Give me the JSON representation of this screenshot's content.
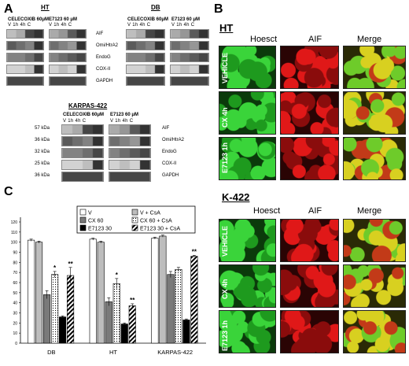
{
  "panels": {
    "a": "A",
    "b": "B",
    "c": "C"
  },
  "panel_a": {
    "ht_title": "HT",
    "db_title": "DB",
    "karpas_title": "KARPAS-422",
    "cx_header": "CELECOXIB  60μM",
    "e7123_header": "E7123 60 μM",
    "lanes": "V  1h  4h  C",
    "markers": [
      "AIF",
      "Omi/HtrA2",
      "EndoG",
      "COX-II",
      "GAPDH"
    ],
    "kda": [
      "57 kDa",
      "36 kDa",
      "32 kDa",
      "25 kDa",
      "36 kDa"
    ]
  },
  "panel_b": {
    "ht_title": "HT",
    "k422_title": "K-422",
    "col_heads": [
      "Hoesct",
      "AIF",
      "Merge"
    ],
    "row_labels": [
      "VEHICLE",
      "CX 4h",
      "E7123 1h"
    ]
  },
  "panel_c": {
    "legend": [
      "V",
      "V + CsA",
      "CX 60",
      "CX 60 + CsA",
      "E7123 30",
      "E7123 30 + CsA"
    ],
    "groups": [
      "DB",
      "HT",
      "KARPAS-422"
    ],
    "yticks": [
      "0",
      "10",
      "20",
      "30",
      "40",
      "50",
      "60",
      "70",
      "80",
      "90",
      "100",
      "110",
      "120"
    ],
    "sig": [
      "*",
      "**",
      "*",
      "**",
      "**"
    ]
  },
  "colors": {
    "hoechst": "#2fc22f",
    "aif": "#cc1111",
    "merge_green": "#5ab82a",
    "merge_yellow": "#d8d020"
  },
  "chart_data": {
    "type": "bar",
    "categories": [
      "DB",
      "HT",
      "KARPAS-422"
    ],
    "series": [
      {
        "name": "V",
        "values": [
          102,
          103,
          104
        ]
      },
      {
        "name": "V + CsA",
        "values": [
          100,
          100,
          106
        ]
      },
      {
        "name": "CX 60",
        "values": [
          48,
          41,
          68
        ]
      },
      {
        "name": "CX 60 + CsA",
        "values": [
          68,
          59,
          73
        ]
      },
      {
        "name": "E7123 30",
        "values": [
          26,
          19,
          23
        ]
      },
      {
        "name": "E7123 30 + CsA",
        "values": [
          67,
          37,
          86
        ]
      }
    ],
    "errors": [
      [
        1,
        1,
        1
      ],
      [
        1,
        1,
        1
      ],
      [
        4,
        4,
        3
      ],
      [
        3,
        5,
        2
      ],
      [
        1,
        1,
        1
      ],
      [
        8,
        2,
        1
      ]
    ],
    "ylim": [
      0,
      120
    ],
    "yticks": [
      0,
      10,
      20,
      30,
      40,
      50,
      60,
      70,
      80,
      90,
      100,
      110,
      120
    ],
    "legend_position": "top",
    "grid": false
  }
}
